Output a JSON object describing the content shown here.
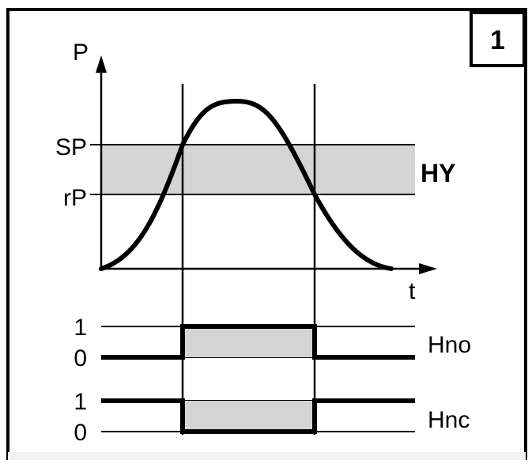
{
  "figure_number": "1",
  "axes": {
    "y_label": "P",
    "x_label": "t"
  },
  "levels": {
    "upper_label": "SP",
    "lower_label": "rP",
    "band_label": "HY"
  },
  "signals": [
    {
      "name": "Hno",
      "high_label": "1",
      "low_label": "0"
    },
    {
      "name": "Hnc",
      "high_label": "1",
      "low_label": "0"
    }
  ],
  "colors": {
    "line": "#000000",
    "band_fill": "#d4d4d4",
    "background": "#ffffff"
  }
}
